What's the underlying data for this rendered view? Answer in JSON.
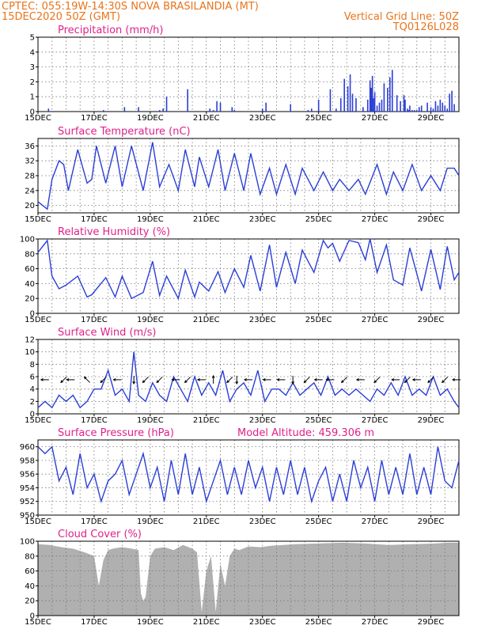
{
  "header": {
    "line1_left": "CPTEC:   055:19W-14:30S   NOVA BRASILANDIA (MT)",
    "line2_left": "15DEC2020 50Z (GMT)",
    "line2_right": "Vertical Grid Line: 50Z",
    "line3_right": "TQ0126L028"
  },
  "colors": {
    "header": "#e8741c",
    "title": "#e0218a",
    "series": "#2b3fd6",
    "cloud": "#b0b0b0"
  },
  "chart_data": [
    {
      "id": "precip",
      "type": "bar",
      "title": "Precipitation (mm/h)",
      "xlim": [
        0,
        360
      ],
      "ylim": [
        0,
        5
      ],
      "yticks": [
        "0",
        "1",
        "2",
        "3",
        "4",
        "5"
      ],
      "xticks": [
        "15DEC",
        "17DEC",
        "19DEC",
        "21DEC",
        "23DEC",
        "25DEC",
        "27DEC",
        "29DEC"
      ],
      "x": [
        9,
        56,
        74,
        86,
        104,
        107,
        110,
        128,
        147,
        150,
        153,
        156,
        166,
        168,
        192,
        195,
        216,
        231,
        234,
        240,
        250,
        255,
        259,
        262,
        265,
        267,
        269,
        272,
        278,
        282,
        284,
        285,
        286,
        287,
        288,
        290,
        292,
        294,
        296,
        299,
        301,
        303,
        307,
        310,
        313,
        314,
        316,
        317,
        318,
        320,
        322,
        324,
        326,
        328,
        333,
        336,
        338,
        340,
        342,
        344,
        346,
        348,
        350,
        352,
        354,
        356
      ],
      "values": [
        0.2,
        0.1,
        0.3,
        0.3,
        0.1,
        0.2,
        1.0,
        1.5,
        0.2,
        0.1,
        0.7,
        0.6,
        0.3,
        0.1,
        0.2,
        0.6,
        0.5,
        0.1,
        0.2,
        0.8,
        1.5,
        0.2,
        0.9,
        2.2,
        1.7,
        2.5,
        1.2,
        0.9,
        0.3,
        0.8,
        2.1,
        1.6,
        2.4,
        0.9,
        1.3,
        0.4,
        0.6,
        0.8,
        1.9,
        1.6,
        2.3,
        2.8,
        1.1,
        0.7,
        1.1,
        0.8,
        0.2,
        0.1,
        0.4,
        0.1,
        0.1,
        0.1,
        0.3,
        0.4,
        0.6,
        0.3,
        0.2,
        0.7,
        0.4,
        0.8,
        0.6,
        0.4,
        0.2,
        1.2,
        1.4,
        0.5
      ]
    },
    {
      "id": "temp",
      "type": "line",
      "title": "Surface Temperature (nC)",
      "xlim": [
        0,
        360
      ],
      "ylim": [
        18,
        38
      ],
      "yticks": [
        "20",
        "24",
        "28",
        "32",
        "36"
      ],
      "xticks": [
        "15DEC",
        "17DEC",
        "19DEC",
        "21DEC",
        "23DEC",
        "25DEC",
        "27DEC",
        "29DEC"
      ],
      "x": [
        0,
        8,
        12,
        18,
        22,
        26,
        34,
        42,
        46,
        50,
        58,
        66,
        72,
        80,
        90,
        98,
        104,
        112,
        120,
        126,
        134,
        138,
        146,
        154,
        160,
        168,
        176,
        182,
        190,
        198,
        204,
        212,
        220,
        226,
        236,
        244,
        252,
        258,
        266,
        274,
        280,
        290,
        298,
        304,
        312,
        320,
        328,
        336,
        344,
        350,
        356,
        360
      ],
      "values": [
        21,
        19,
        27,
        32,
        31,
        24,
        35,
        26,
        27,
        36,
        26,
        36,
        25,
        36,
        24,
        37,
        25,
        31,
        24,
        35,
        25,
        33,
        25,
        35,
        24,
        34,
        24,
        34,
        23,
        30,
        23,
        31,
        23,
        30,
        24,
        29,
        24,
        27,
        24,
        27,
        23,
        31,
        23,
        29,
        24,
        31,
        24,
        28,
        24,
        30,
        30,
        28
      ]
    },
    {
      "id": "rh",
      "type": "line",
      "title": "Relative Humidity (%)",
      "xlim": [
        0,
        360
      ],
      "ylim": [
        0,
        100
      ],
      "yticks": [
        "0",
        "20",
        "40",
        "60",
        "80",
        "100"
      ],
      "xticks": [
        "15DEC",
        "17DEC",
        "19DEC",
        "21DEC",
        "23DEC",
        "25DEC",
        "27DEC",
        "29DEC"
      ],
      "x": [
        0,
        8,
        12,
        18,
        24,
        34,
        42,
        46,
        58,
        66,
        72,
        80,
        90,
        98,
        104,
        110,
        120,
        126,
        134,
        138,
        146,
        154,
        160,
        168,
        176,
        182,
        190,
        198,
        204,
        212,
        220,
        226,
        236,
        244,
        248,
        252,
        258,
        266,
        274,
        280,
        284,
        290,
        298,
        304,
        312,
        318,
        328,
        336,
        344,
        350,
        356,
        360
      ],
      "values": [
        82,
        98,
        50,
        33,
        38,
        50,
        22,
        25,
        48,
        22,
        50,
        20,
        28,
        70,
        24,
        50,
        20,
        58,
        22,
        42,
        30,
        56,
        28,
        60,
        35,
        78,
        30,
        92,
        35,
        82,
        40,
        85,
        55,
        98,
        88,
        94,
        70,
        98,
        95,
        72,
        100,
        55,
        92,
        45,
        38,
        88,
        30,
        86,
        32,
        90,
        45,
        55
      ]
    },
    {
      "id": "wind",
      "type": "line",
      "title": "Surface Wind (m/s)",
      "xlim": [
        0,
        360
      ],
      "ylim": [
        0,
        12
      ],
      "yticks": [
        "0",
        "2",
        "4",
        "6",
        "8",
        "10",
        "12"
      ],
      "xticks": [
        "15DEC",
        "17DEC",
        "19DEC",
        "21DEC",
        "23DEC",
        "25DEC",
        "27DEC",
        "29DEC"
      ],
      "x": [
        0,
        6,
        12,
        18,
        24,
        30,
        36,
        42,
        48,
        54,
        60,
        66,
        72,
        78,
        82,
        86,
        92,
        98,
        104,
        110,
        116,
        122,
        128,
        134,
        140,
        146,
        152,
        158,
        164,
        170,
        176,
        182,
        188,
        194,
        200,
        206,
        212,
        218,
        224,
        230,
        236,
        242,
        248,
        254,
        260,
        266,
        272,
        278,
        284,
        290,
        296,
        302,
        308,
        314,
        320,
        326,
        332,
        338,
        344,
        350,
        356,
        360
      ],
      "values": [
        1,
        2,
        1,
        3,
        2,
        3,
        1,
        2,
        4,
        4,
        7,
        3,
        4,
        2,
        10,
        3,
        2,
        5,
        3,
        2,
        6,
        4,
        2,
        6,
        3,
        5,
        3,
        7,
        2,
        4,
        5,
        3,
        7,
        2,
        4,
        4,
        3,
        5,
        3,
        4,
        5,
        3,
        6,
        3,
        4,
        3,
        4,
        3,
        2,
        4,
        3,
        5,
        3,
        6,
        3,
        4,
        3,
        6,
        3,
        4,
        2,
        1
      ]
    },
    {
      "id": "pres",
      "type": "line",
      "title": "Surface Pressure (hPa)",
      "annotation": "Model Altitude: 459.306 m",
      "xlim": [
        0,
        360
      ],
      "ylim": [
        950,
        961
      ],
      "yticks": [
        "950",
        "952",
        "954",
        "956",
        "958",
        "960"
      ],
      "xticks": [
        "15DEC",
        "17DEC",
        "19DEC",
        "21DEC",
        "23DEC",
        "25DEC",
        "27DEC",
        "29DEC"
      ],
      "x": [
        0,
        6,
        12,
        18,
        24,
        30,
        36,
        42,
        48,
        54,
        60,
        66,
        72,
        78,
        84,
        90,
        96,
        102,
        108,
        114,
        120,
        126,
        132,
        138,
        144,
        150,
        156,
        162,
        168,
        174,
        180,
        186,
        192,
        198,
        204,
        210,
        216,
        222,
        228,
        234,
        240,
        246,
        252,
        258,
        264,
        270,
        276,
        282,
        288,
        294,
        300,
        306,
        312,
        318,
        324,
        330,
        336,
        342,
        348,
        354,
        360
      ],
      "values": [
        960,
        959,
        960,
        955,
        957,
        953,
        959,
        954,
        956,
        952,
        955,
        956,
        958,
        953,
        956,
        959,
        954,
        957,
        952,
        958,
        953,
        959,
        953,
        957,
        952,
        955,
        958,
        953,
        957,
        953,
        958,
        954,
        957,
        952,
        957,
        953,
        958,
        953,
        957,
        952,
        955,
        957,
        952,
        956,
        952,
        958,
        954,
        957,
        952,
        958,
        953,
        957,
        953,
        959,
        953,
        957,
        953,
        960,
        955,
        954,
        958
      ]
    },
    {
      "id": "cloud",
      "type": "area",
      "title": "Cloud Cover (%)",
      "xlim": [
        0,
        360
      ],
      "ylim": [
        0,
        100
      ],
      "yticks": [
        "0",
        "20",
        "40",
        "60",
        "80",
        "100"
      ],
      "xticks": [
        "15DEC",
        "17DEC",
        "19DEC",
        "21DEC",
        "23DEC",
        "25DEC",
        "27DEC",
        "29DEC"
      ],
      "x": [
        0,
        10,
        20,
        30,
        40,
        48,
        52,
        56,
        60,
        64,
        72,
        80,
        86,
        88,
        90,
        92,
        96,
        100,
        108,
        116,
        124,
        132,
        136,
        140,
        144,
        148,
        152,
        156,
        160,
        164,
        168,
        172,
        180,
        190,
        200,
        210,
        220,
        240,
        260,
        280,
        300,
        320,
        340,
        350,
        360
      ],
      "values": [
        96,
        95,
        92,
        90,
        85,
        80,
        40,
        75,
        88,
        90,
        92,
        90,
        88,
        30,
        20,
        25,
        80,
        90,
        92,
        88,
        95,
        90,
        85,
        5,
        60,
        80,
        5,
        70,
        40,
        80,
        90,
        88,
        93,
        92,
        94,
        95,
        96,
        97,
        98,
        97,
        95,
        96,
        97,
        98,
        98
      ]
    }
  ],
  "wind_arrows": [
    {
      "x": 6,
      "dir": "W"
    },
    {
      "x": 22,
      "dir": "SW"
    },
    {
      "x": 28,
      "dir": "W"
    },
    {
      "x": 42,
      "dir": "NW"
    },
    {
      "x": 56,
      "dir": "SW"
    },
    {
      "x": 68,
      "dir": "W"
    },
    {
      "x": 82,
      "dir": "S"
    },
    {
      "x": 92,
      "dir": "SW"
    },
    {
      "x": 104,
      "dir": "SW"
    },
    {
      "x": 118,
      "dir": "W"
    },
    {
      "x": 128,
      "dir": "SW"
    },
    {
      "x": 140,
      "dir": "W"
    },
    {
      "x": 150,
      "dir": "N"
    },
    {
      "x": 164,
      "dir": "SW"
    },
    {
      "x": 170,
      "dir": "S"
    },
    {
      "x": 180,
      "dir": "W"
    },
    {
      "x": 196,
      "dir": "W"
    },
    {
      "x": 208,
      "dir": "W"
    },
    {
      "x": 218,
      "dir": "S"
    },
    {
      "x": 230,
      "dir": "SW"
    },
    {
      "x": 240,
      "dir": "W"
    },
    {
      "x": 250,
      "dir": "W"
    },
    {
      "x": 262,
      "dir": "SW"
    },
    {
      "x": 276,
      "dir": "W"
    },
    {
      "x": 290,
      "dir": "SW"
    },
    {
      "x": 306,
      "dir": "W"
    },
    {
      "x": 316,
      "dir": "SW"
    },
    {
      "x": 324,
      "dir": "W"
    },
    {
      "x": 336,
      "dir": "SW"
    },
    {
      "x": 348,
      "dir": "SW"
    },
    {
      "x": 358,
      "dir": "W"
    }
  ]
}
